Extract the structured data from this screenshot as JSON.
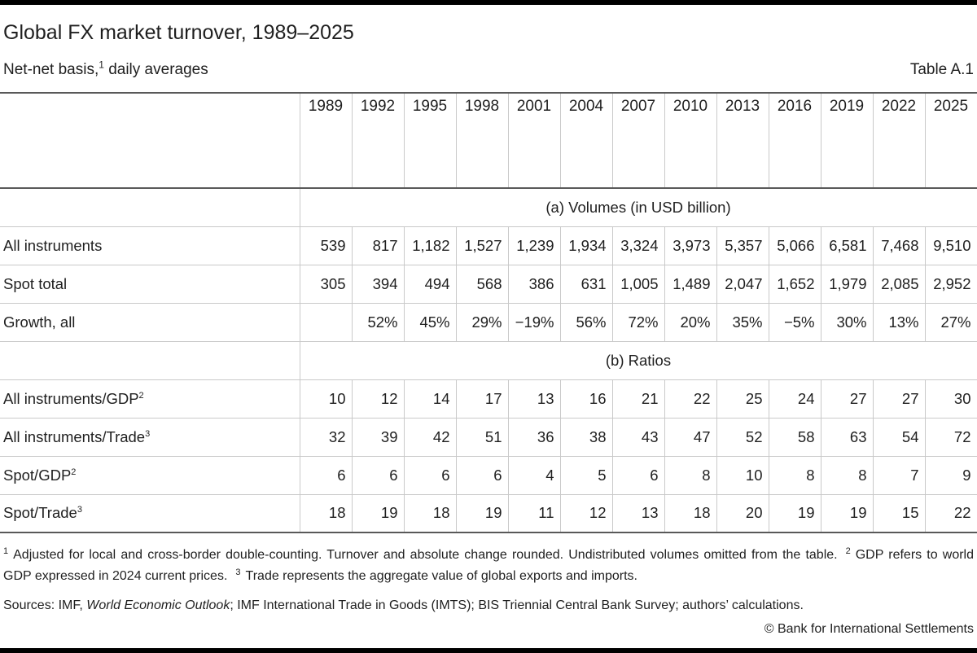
{
  "colors": {
    "text": "#1f1f1f",
    "rule_dark": "#595959",
    "rule_light": "#c9c9c9",
    "bar": "#000000",
    "bg": "#ffffff"
  },
  "header": {
    "title": "Global FX market turnover, 1989–2025",
    "subtitle_prefix": "Net-net basis,",
    "subtitle_sup": "1",
    "subtitle_suffix": " daily averages",
    "table_label": "Table A.1"
  },
  "table": {
    "years": [
      "1989",
      "1992",
      "1995",
      "1998",
      "2001",
      "2004",
      "2007",
      "2010",
      "2013",
      "2016",
      "2019",
      "2022",
      "2025"
    ],
    "sections": [
      {
        "title": "(a) Volumes (in USD billion)",
        "rows": [
          {
            "label": "All instruments",
            "sup": "",
            "values": [
              "539",
              "817",
              "1,182",
              "1,527",
              "1,239",
              "1,934",
              "3,324",
              "3,973",
              "5,357",
              "5,066",
              "6,581",
              "7,468",
              "9,510"
            ]
          },
          {
            "label": "Spot total",
            "sup": "",
            "values": [
              "305",
              "394",
              "494",
              "568",
              "386",
              "631",
              "1,005",
              "1,489",
              "2,047",
              "1,652",
              "1,979",
              "2,085",
              "2,952"
            ]
          },
          {
            "label": "Growth, all",
            "sup": "",
            "values": [
              "",
              "52%",
              "45%",
              "29%",
              "−19%",
              "56%",
              "72%",
              "20%",
              "35%",
              "−5%",
              "30%",
              "13%",
              "27%"
            ]
          }
        ]
      },
      {
        "title": "(b) Ratios",
        "rows": [
          {
            "label": "All instruments/GDP",
            "sup": "2",
            "values": [
              "10",
              "12",
              "14",
              "17",
              "13",
              "16",
              "21",
              "22",
              "25",
              "24",
              "27",
              "27",
              "30"
            ]
          },
          {
            "label": "All instruments/Trade",
            "sup": "3",
            "values": [
              "32",
              "39",
              "42",
              "51",
              "36",
              "38",
              "43",
              "47",
              "52",
              "58",
              "63",
              "54",
              "72"
            ]
          },
          {
            "label": "Spot/GDP",
            "sup": "2",
            "values": [
              "6",
              "6",
              "6",
              "6",
              "4",
              "5",
              "6",
              "8",
              "10",
              "8",
              "8",
              "7",
              "9"
            ]
          },
          {
            "label": "Spot/Trade",
            "sup": "3",
            "values": [
              "18",
              "19",
              "18",
              "19",
              "11",
              "12",
              "13",
              "18",
              "20",
              "19",
              "19",
              "15",
              "22"
            ]
          }
        ]
      }
    ]
  },
  "footnotes": [
    {
      "marker": "1",
      "text": "Adjusted for local and cross-border double-counting. Turnover and absolute change rounded. Undistributed volumes omitted from the table."
    },
    {
      "marker": "2",
      "text": "GDP refers to world GDP expressed in 2024 current prices."
    },
    {
      "marker": "3",
      "text": "Trade represents the aggregate value of global exports and imports."
    }
  ],
  "sources": {
    "prefix": "Sources: IMF, ",
    "italic": "World Economic Outlook",
    "suffix": "; IMF International Trade in Goods (IMTS); BIS Triennial Central Bank Survey; authors’ calculations."
  },
  "copyright": "© Bank for International Settlements"
}
